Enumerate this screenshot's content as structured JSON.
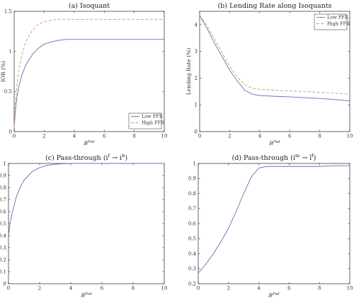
{
  "chart_data": [
    {
      "type": "line",
      "title": "(a) Isoquant",
      "xlabel": "B^{Fed}",
      "ylabel": "IOR (%)",
      "xlim": [
        0,
        10
      ],
      "ylim": [
        0,
        1.5
      ],
      "xticks": [
        0,
        2,
        4,
        6,
        8,
        10
      ],
      "yticks": [
        0,
        0.5,
        1,
        1.5
      ],
      "xtick_labels": [
        "0",
        "2",
        "4",
        "6",
        "8",
        "10"
      ],
      "ytick_labels": [
        "0",
        "0.5",
        "1",
        "1.5"
      ],
      "legend_position": "bottom-right",
      "grid": false,
      "series": [
        {
          "name": "Low FFR",
          "color": "#6b6bb5",
          "dash": "solid",
          "x": [
            0,
            0.1,
            0.2,
            0.3,
            0.5,
            0.75,
            1,
            1.25,
            1.5,
            1.75,
            2,
            2.5,
            3,
            3.5,
            4,
            5,
            6,
            7,
            8,
            9,
            10
          ],
          "y": [
            0.05,
            0.3,
            0.45,
            0.55,
            0.7,
            0.82,
            0.9,
            0.97,
            1.02,
            1.06,
            1.09,
            1.12,
            1.14,
            1.15,
            1.15,
            1.15,
            1.15,
            1.15,
            1.15,
            1.15,
            1.15
          ]
        },
        {
          "name": "High FFR",
          "color": "#d98a7a",
          "dash": "4,2.5",
          "x": [
            0,
            0.1,
            0.2,
            0.3,
            0.5,
            0.75,
            1,
            1.25,
            1.5,
            1.75,
            2,
            2.5,
            3,
            3.5,
            4,
            5,
            6,
            7,
            8,
            9,
            10
          ],
          "y": [
            0.05,
            0.4,
            0.6,
            0.75,
            0.95,
            1.1,
            1.2,
            1.27,
            1.32,
            1.35,
            1.37,
            1.39,
            1.4,
            1.4,
            1.4,
            1.4,
            1.4,
            1.4,
            1.4,
            1.4,
            1.4
          ]
        }
      ]
    },
    {
      "type": "line",
      "title": "(b) Lending Rate along Isoquants",
      "xlabel": "B^{Fed}",
      "ylabel": "Lending Rate (%)",
      "xlim": [
        0,
        10
      ],
      "ylim": [
        0,
        4.5
      ],
      "xticks": [
        0,
        2,
        4,
        6,
        8,
        10
      ],
      "yticks": [
        0,
        1,
        2,
        3,
        4
      ],
      "xtick_labels": [
        "0",
        "2",
        "4",
        "6",
        "8",
        "10"
      ],
      "ytick_labels": [
        "0",
        "1",
        "2",
        "3",
        "4"
      ],
      "legend_position": "top-right",
      "grid": false,
      "series": [
        {
          "name": "Low FFR",
          "color": "#6b6bb5",
          "dash": "solid",
          "x": [
            0,
            0.5,
            1,
            1.5,
            2,
            2.5,
            3,
            3.5,
            4,
            5,
            6,
            7,
            8,
            9,
            10
          ],
          "y": [
            4.35,
            3.85,
            3.3,
            2.8,
            2.3,
            1.9,
            1.55,
            1.4,
            1.35,
            1.32,
            1.3,
            1.27,
            1.24,
            1.2,
            1.15
          ]
        },
        {
          "name": "High FFR",
          "color": "#d98a7a",
          "dash": "4,2.5",
          "x": [
            0,
            0.5,
            1,
            1.5,
            2,
            2.5,
            3,
            3.5,
            4,
            5,
            6,
            7,
            8,
            9,
            10
          ],
          "y": [
            4.35,
            3.95,
            3.45,
            2.95,
            2.45,
            2.05,
            1.75,
            1.62,
            1.58,
            1.55,
            1.52,
            1.5,
            1.47,
            1.44,
            1.4
          ]
        }
      ]
    },
    {
      "type": "line",
      "title": "(c) Pass-through (i^f → i^b)",
      "xlabel": "B^{Fed}",
      "ylabel": "",
      "xlim": [
        0,
        10
      ],
      "ylim": [
        0,
        1
      ],
      "xticks": [
        0,
        2,
        4,
        6,
        8,
        10
      ],
      "yticks": [
        0,
        0.1,
        0.2,
        0.3,
        0.4,
        0.5,
        0.6,
        0.7,
        0.8,
        0.9,
        1
      ],
      "xtick_labels": [
        "0",
        "2",
        "4",
        "6",
        "8",
        "10"
      ],
      "ytick_labels": [
        "0",
        "0.1",
        "0.2",
        "0.3",
        "0.4",
        "0.5",
        "0.6",
        "0.7",
        "0.8",
        "0.9",
        "1"
      ],
      "grid": false,
      "series": [
        {
          "name": "",
          "color": "#6b6bb5",
          "dash": "solid",
          "x": [
            0,
            0.1,
            0.25,
            0.5,
            0.75,
            1,
            1.5,
            2,
            2.5,
            3,
            3.5,
            4,
            5,
            6,
            7,
            8,
            9,
            10
          ],
          "y": [
            0.4,
            0.5,
            0.6,
            0.72,
            0.8,
            0.86,
            0.93,
            0.965,
            0.985,
            0.993,
            0.998,
            1.0,
            1.0,
            1.0,
            1.0,
            1.0,
            1.0,
            1.0
          ]
        }
      ]
    },
    {
      "type": "line",
      "title": "(d) Pass-through (i^m → ĩ^f)",
      "xlabel": "B^{Fed}",
      "ylabel": "",
      "xlim": [
        0,
        10
      ],
      "ylim": [
        0.2,
        1
      ],
      "xticks": [
        0,
        2,
        4,
        6,
        8,
        10
      ],
      "yticks": [
        0.2,
        0.3,
        0.4,
        0.5,
        0.6,
        0.7,
        0.8,
        0.9,
        1
      ],
      "xtick_labels": [
        "0",
        "2",
        "4",
        "6",
        "8",
        "10"
      ],
      "ytick_labels": [
        "0.2",
        "0.3",
        "0.4",
        "0.5",
        "0.6",
        "0.7",
        "0.8",
        "0.9",
        "1"
      ],
      "grid": false,
      "series": [
        {
          "name": "",
          "color": "#6b6bb5",
          "dash": "solid",
          "x": [
            0,
            0.5,
            1,
            1.5,
            2,
            2.5,
            3,
            3.5,
            4,
            4.5,
            5,
            6,
            7,
            8,
            9,
            10
          ],
          "y": [
            0.27,
            0.33,
            0.4,
            0.48,
            0.57,
            0.68,
            0.8,
            0.91,
            0.97,
            0.98,
            0.98,
            0.98,
            0.98,
            0.98,
            0.985,
            0.985
          ]
        }
      ]
    }
  ]
}
